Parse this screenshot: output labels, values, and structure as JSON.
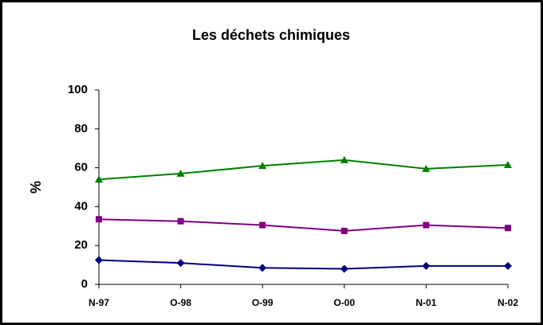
{
  "chart_data": {
    "type": "line",
    "title": "Les déchets chimiques",
    "y_label": "%",
    "categories": [
      "N-97",
      "O-98",
      "O-99",
      "O-00",
      "N-01",
      "N-02"
    ],
    "series": [
      {
        "color": "#008000",
        "marker": "triangle",
        "values": [
          54,
          57,
          61,
          64,
          59.5,
          61.5
        ]
      },
      {
        "color": "#800080",
        "marker": "square",
        "values": [
          33.5,
          32.5,
          30.5,
          27.5,
          30.5,
          29
        ]
      },
      {
        "color": "#000080",
        "marker": "diamond",
        "values": [
          12.5,
          11,
          8.5,
          8,
          9.5,
          9.5
        ]
      }
    ],
    "ylim": [
      0,
      100
    ],
    "yticks": [
      0,
      20,
      40,
      60,
      80,
      100
    ],
    "grid": false
  }
}
